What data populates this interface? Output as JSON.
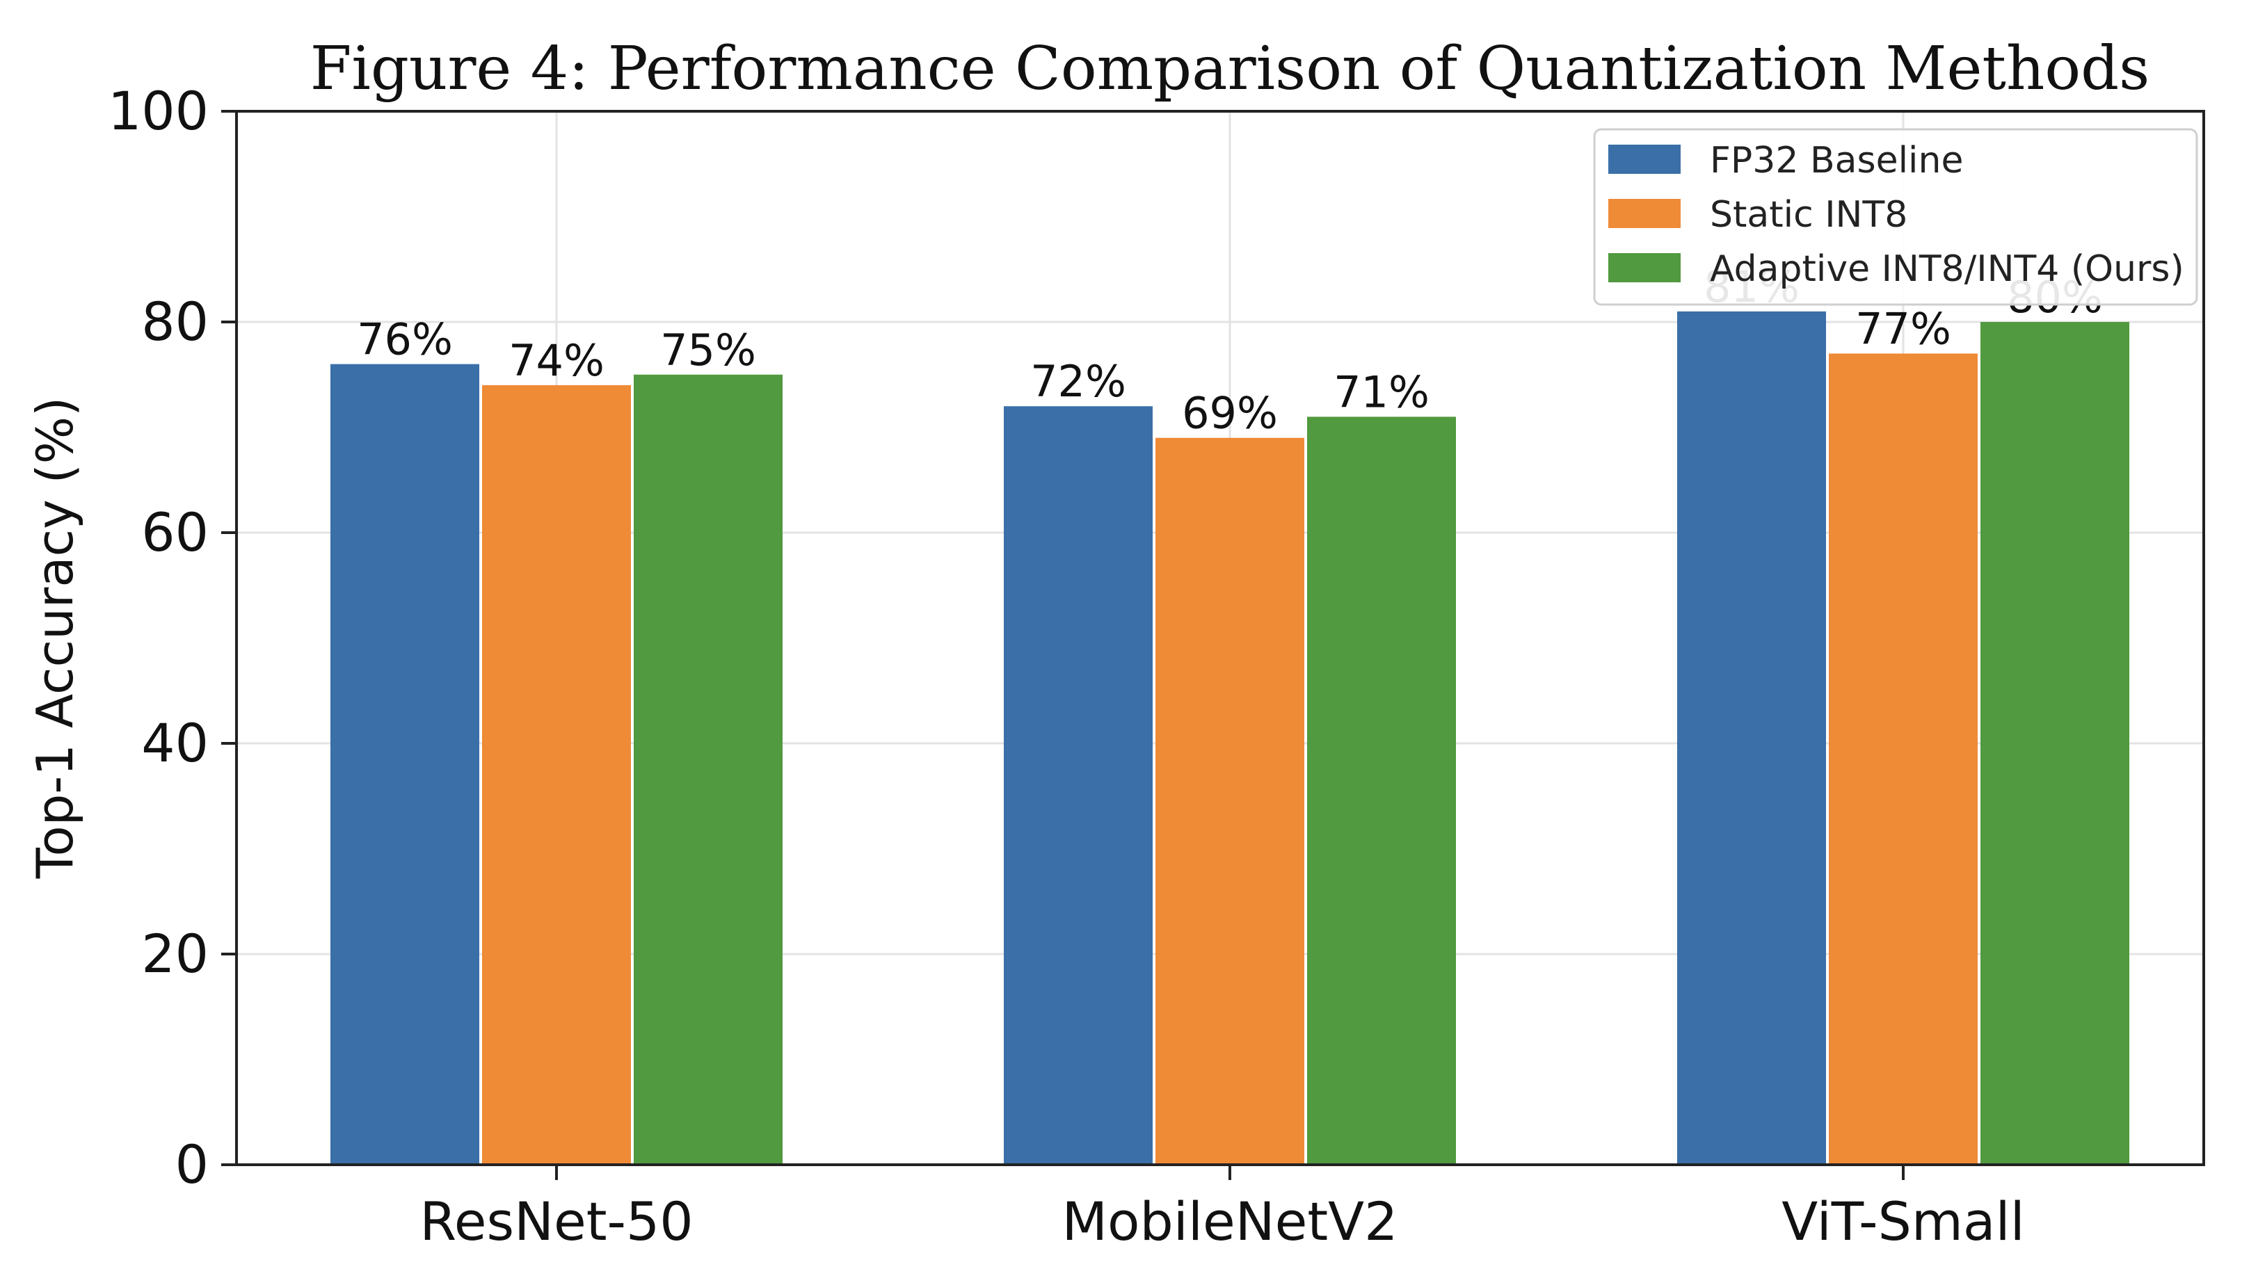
{
  "chart_data": {
    "type": "bar",
    "title": "Figure 4: Performance Comparison of Quantization Methods",
    "xlabel": "",
    "ylabel": "Top-1 Accuracy (%)",
    "ylim": [
      0,
      100
    ],
    "yticks": [
      0,
      20,
      40,
      60,
      80,
      100
    ],
    "grid": true,
    "legend_position": "top-right",
    "categories": [
      "ResNet-50",
      "MobileNetV2",
      "ViT-Small"
    ],
    "series": [
      {
        "name": "FP32 Baseline",
        "color": "#3b6fa8",
        "values": [
          76,
          72,
          81
        ],
        "labels": [
          "76%",
          "72%",
          "81%"
        ]
      },
      {
        "name": "Static INT8",
        "color": "#ef8a37",
        "values": [
          74,
          69,
          77
        ],
        "labels": [
          "74%",
          "69%",
          "77%"
        ]
      },
      {
        "name": "Adaptive INT8/INT4 (Ours)",
        "color": "#519a3f",
        "values": [
          75,
          71,
          80
        ],
        "labels": [
          "75%",
          "71%",
          "80%"
        ]
      }
    ]
  }
}
